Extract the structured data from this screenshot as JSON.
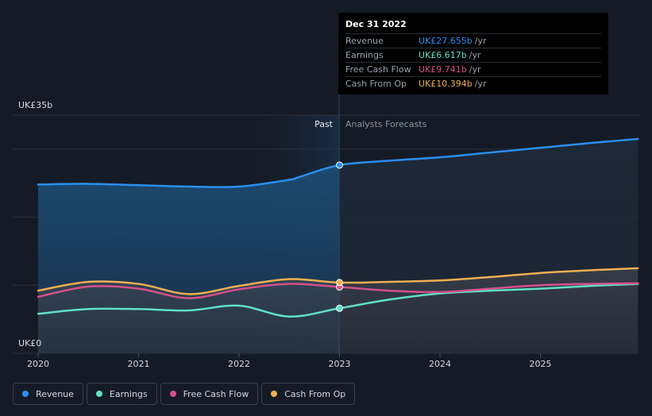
{
  "chart_data": {
    "type": "line",
    "x_ticks": [
      "2020",
      "2021",
      "2022",
      "2023",
      "2024",
      "2025"
    ],
    "y_ticks": [
      "UK£35b",
      "UK£0"
    ],
    "ylim": [
      0,
      35
    ],
    "past_label": "Past",
    "forecast_label": "Analysts Forecasts",
    "series": [
      {
        "name": "Revenue",
        "color": "#2a8ff0",
        "values": [
          [
            2020.0,
            24.8
          ],
          [
            2020.5,
            24.9
          ],
          [
            2021.0,
            24.7
          ],
          [
            2021.5,
            24.5
          ],
          [
            2022.0,
            24.5
          ],
          [
            2022.5,
            25.5
          ],
          [
            2022.6,
            25.9
          ],
          [
            2023.0,
            27.655
          ],
          [
            2023.5,
            28.3
          ],
          [
            2024.0,
            28.8
          ],
          [
            2024.5,
            29.5
          ],
          [
            2025.0,
            30.2
          ],
          [
            2025.5,
            30.9
          ],
          [
            2025.97,
            31.5
          ]
        ]
      },
      {
        "name": "Earnings",
        "color": "#5fe0c7",
        "values": [
          [
            2020.0,
            5.8
          ],
          [
            2020.5,
            6.5
          ],
          [
            2021.0,
            6.5
          ],
          [
            2021.5,
            6.3
          ],
          [
            2022.0,
            7.0
          ],
          [
            2022.5,
            5.4
          ],
          [
            2023.0,
            6.617
          ],
          [
            2023.5,
            7.9
          ],
          [
            2024.0,
            8.8
          ],
          [
            2024.5,
            9.2
          ],
          [
            2025.0,
            9.5
          ],
          [
            2025.5,
            9.9
          ],
          [
            2025.97,
            10.2
          ]
        ]
      },
      {
        "name": "Free Cash Flow",
        "color": "#d4508a",
        "values": [
          [
            2020.0,
            8.3
          ],
          [
            2020.5,
            9.8
          ],
          [
            2021.0,
            9.5
          ],
          [
            2021.5,
            8.1
          ],
          [
            2022.0,
            9.4
          ],
          [
            2022.5,
            10.2
          ],
          [
            2023.0,
            9.741
          ],
          [
            2023.5,
            9.2
          ],
          [
            2024.0,
            9.0
          ],
          [
            2024.5,
            9.5
          ],
          [
            2025.0,
            10.0
          ],
          [
            2025.5,
            10.2
          ],
          [
            2025.97,
            10.3
          ]
        ]
      },
      {
        "name": "Cash From Op",
        "color": "#f0ae52",
        "values": [
          [
            2020.0,
            9.2
          ],
          [
            2020.5,
            10.5
          ],
          [
            2021.0,
            10.2
          ],
          [
            2021.5,
            8.7
          ],
          [
            2022.0,
            9.9
          ],
          [
            2022.5,
            10.9
          ],
          [
            2023.0,
            10.394
          ],
          [
            2023.5,
            10.5
          ],
          [
            2024.0,
            10.7
          ],
          [
            2024.5,
            11.2
          ],
          [
            2025.0,
            11.8
          ],
          [
            2025.5,
            12.2
          ],
          [
            2025.97,
            12.5
          ]
        ]
      }
    ],
    "highlight_x": 2023.0,
    "grid": true,
    "legend_position": "bottom-left"
  },
  "tooltip": {
    "date": "Dec 31 2022",
    "rows": [
      {
        "label": "Revenue",
        "value": "UK£27.655b",
        "unit": "/yr",
        "color": "#2a8ff0"
      },
      {
        "label": "Earnings",
        "value": "UK£6.617b",
        "unit": "/yr",
        "color": "#5fe0c7"
      },
      {
        "label": "Free Cash Flow",
        "value": "UK£9.741b",
        "unit": "/yr",
        "color": "#d4508a"
      },
      {
        "label": "Cash From Op",
        "value": "UK£10.394b",
        "unit": "/yr",
        "color": "#f0ae52"
      }
    ]
  },
  "legend": [
    {
      "label": "Revenue",
      "color": "#2a8ff0"
    },
    {
      "label": "Earnings",
      "color": "#5fe0c7"
    },
    {
      "label": "Free Cash Flow",
      "color": "#d4508a"
    },
    {
      "label": "Cash From Op",
      "color": "#f0ae52"
    }
  ]
}
